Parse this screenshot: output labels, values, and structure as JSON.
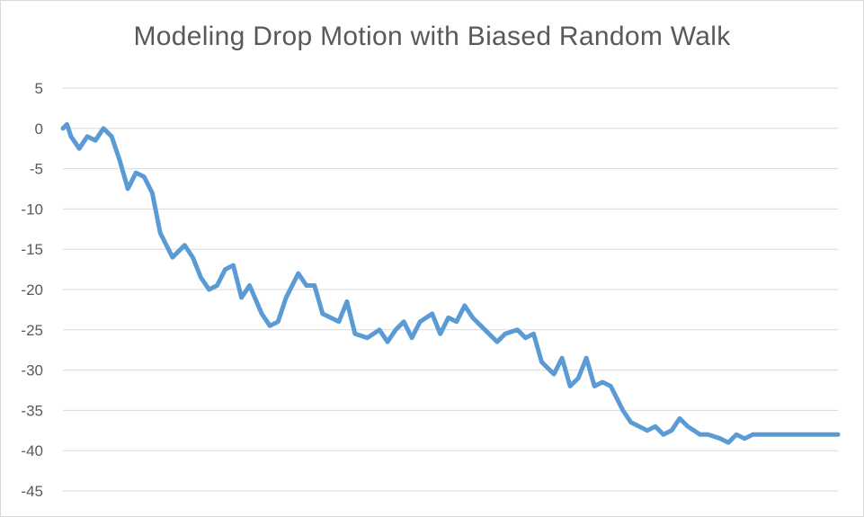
{
  "chart_data": {
    "type": "line",
    "title": "Modeling Drop Motion with Biased Random Walk",
    "xlabel": "",
    "ylabel": "",
    "ylim": [
      -45,
      5
    ],
    "yticks": [
      5,
      0,
      -5,
      -10,
      -15,
      -20,
      -25,
      -30,
      -35,
      -40,
      -45
    ],
    "grid": true,
    "legend": "none",
    "series": [
      {
        "color": "#5b9bd5",
        "x": [
          0,
          5,
          10,
          20,
          30,
          40,
          50,
          60,
          70,
          80,
          90,
          100,
          110,
          120,
          135,
          150,
          160,
          170,
          180,
          190,
          200,
          210,
          220,
          230,
          245,
          255,
          265,
          275,
          290,
          300,
          310,
          320,
          340,
          350,
          360,
          375,
          390,
          400,
          410,
          420,
          430,
          440,
          455,
          465,
          475,
          485,
          495,
          505,
          520,
          535,
          545,
          560,
          570,
          580,
          590,
          605,
          615,
          625,
          635,
          645,
          655,
          665,
          675,
          690,
          700,
          710,
          720,
          730,
          740,
          750,
          760,
          770,
          785,
          795,
          810,
          820,
          830,
          840,
          850,
          860,
          870,
          880,
          890,
          905,
          915,
          925,
          935,
          945,
          955
        ],
        "y": [
          0,
          0.5,
          -1,
          -2.5,
          -1,
          -1.5,
          0,
          -1,
          -4,
          -7.5,
          -5.5,
          -6,
          -8,
          -13,
          -16,
          -14.5,
          -16,
          -18.5,
          -20,
          -19.5,
          -17.5,
          -17,
          -21,
          -19.5,
          -23,
          -24.5,
          -24,
          -21,
          -18,
          -19.5,
          -19.5,
          -23,
          -24,
          -21.5,
          -25.5,
          -26,
          -25,
          -26.5,
          -25,
          -24,
          -26,
          -24,
          -23,
          -25.5,
          -23.5,
          -24,
          -22,
          -23.5,
          -25,
          -26.5,
          -25.5,
          -25,
          -26,
          -25.5,
          -29,
          -30.5,
          -28.5,
          -32,
          -31,
          -28.5,
          -32,
          -31.5,
          -32,
          -35,
          -36.5,
          -37,
          -37.5,
          -37,
          -38,
          -37.5,
          -36,
          -37,
          -38,
          -38,
          -38.5,
          -39,
          -38,
          -38.5,
          -38,
          -38,
          -38,
          -38,
          -38,
          -38,
          -38,
          -38,
          -38,
          -38,
          -38
        ]
      }
    ]
  }
}
